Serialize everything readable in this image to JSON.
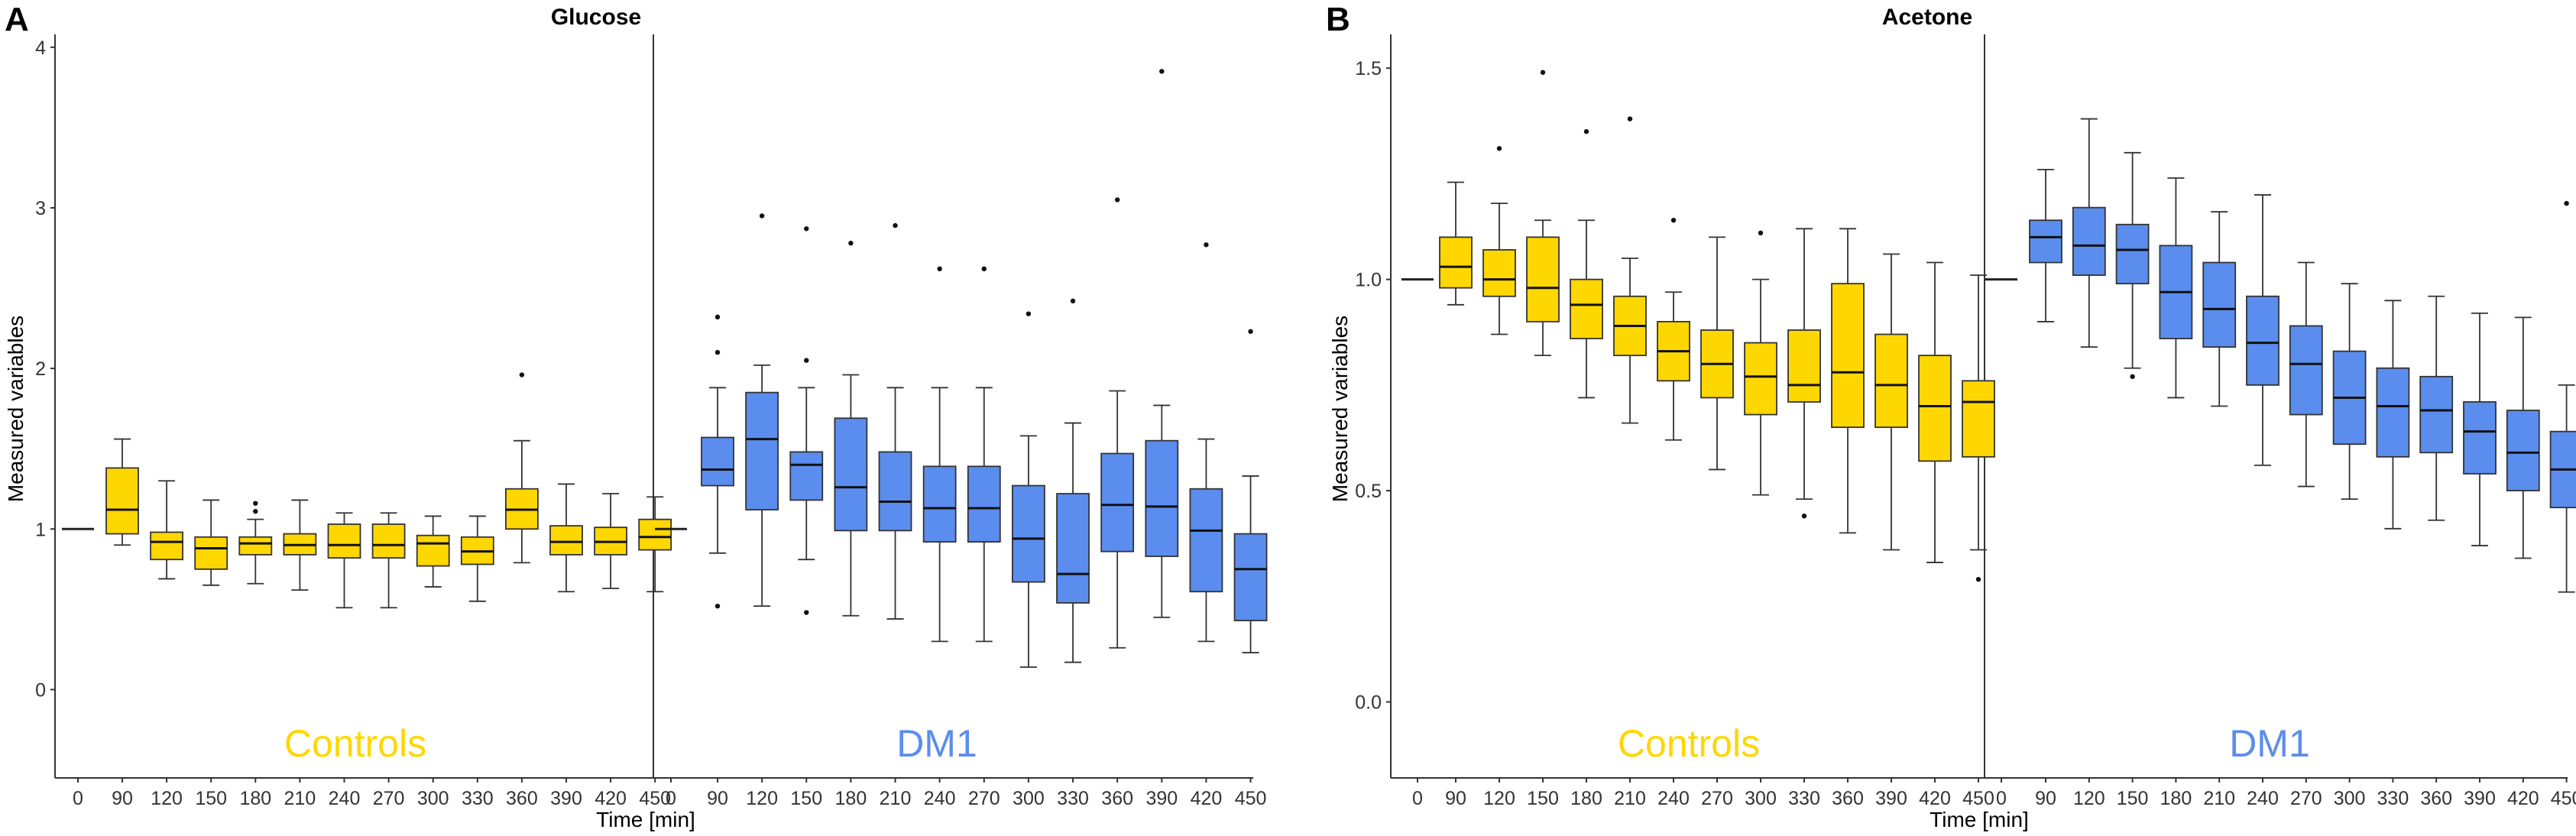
{
  "colors": {
    "controls": "#FFD700",
    "dm1": "#5B8DEE",
    "box_stroke": "#333333"
  },
  "chart_data": [
    {
      "type": "boxplot",
      "panel_letter": "A",
      "title": "Glucose",
      "xlabel": "Time [min]",
      "ylabel": "Measured variables",
      "ylim": [
        -0.55,
        4.08
      ],
      "yticks": [
        {
          "v": 0,
          "label": "0"
        },
        {
          "v": 1,
          "label": "1"
        },
        {
          "v": 2,
          "label": "2"
        },
        {
          "v": 3,
          "label": "3"
        },
        {
          "v": 4,
          "label": "4"
        }
      ],
      "categories": [
        "0",
        "90",
        "120",
        "150",
        "180",
        "210",
        "240",
        "270",
        "300",
        "330",
        "360",
        "390",
        "420",
        "450"
      ],
      "groups": [
        {
          "name": "Controls",
          "color": "#FFD700",
          "boxes": [
            {
              "t": "0",
              "min": 1,
              "q1": 1,
              "med": 1,
              "q3": 1,
              "max": 1,
              "out": []
            },
            {
              "t": "90",
              "min": 0.9,
              "q1": 0.97,
              "med": 1.12,
              "q3": 1.38,
              "max": 1.56,
              "out": []
            },
            {
              "t": "120",
              "min": 0.69,
              "q1": 0.81,
              "med": 0.92,
              "q3": 0.98,
              "max": 1.3,
              "out": []
            },
            {
              "t": "150",
              "min": 0.65,
              "q1": 0.75,
              "med": 0.88,
              "q3": 0.95,
              "max": 1.18,
              "out": []
            },
            {
              "t": "180",
              "min": 0.66,
              "q1": 0.84,
              "med": 0.91,
              "q3": 0.95,
              "max": 1.06,
              "out": [
                1.11,
                1.16
              ]
            },
            {
              "t": "210",
              "min": 0.62,
              "q1": 0.84,
              "med": 0.9,
              "q3": 0.97,
              "max": 1.18,
              "out": []
            },
            {
              "t": "240",
              "min": 0.51,
              "q1": 0.82,
              "med": 0.9,
              "q3": 1.03,
              "max": 1.1,
              "out": []
            },
            {
              "t": "270",
              "min": 0.51,
              "q1": 0.82,
              "med": 0.9,
              "q3": 1.03,
              "max": 1.1,
              "out": []
            },
            {
              "t": "300",
              "min": 0.64,
              "q1": 0.77,
              "med": 0.91,
              "q3": 0.96,
              "max": 1.08,
              "out": []
            },
            {
              "t": "330",
              "min": 0.55,
              "q1": 0.78,
              "med": 0.86,
              "q3": 0.95,
              "max": 1.08,
              "out": []
            },
            {
              "t": "360",
              "min": 0.79,
              "q1": 1.0,
              "med": 1.12,
              "q3": 1.25,
              "max": 1.55,
              "out": [
                1.96
              ]
            },
            {
              "t": "390",
              "min": 0.61,
              "q1": 0.84,
              "med": 0.92,
              "q3": 1.02,
              "max": 1.28,
              "out": []
            },
            {
              "t": "420",
              "min": 0.63,
              "q1": 0.84,
              "med": 0.92,
              "q3": 1.01,
              "max": 1.22,
              "out": []
            },
            {
              "t": "450",
              "min": 0.61,
              "q1": 0.87,
              "med": 0.95,
              "q3": 1.06,
              "max": 1.2,
              "out": []
            }
          ]
        },
        {
          "name": "DM1",
          "color": "#5B8DEE",
          "boxes": [
            {
              "t": "0",
              "min": 1,
              "q1": 1,
              "med": 1,
              "q3": 1,
              "max": 1,
              "out": []
            },
            {
              "t": "90",
              "min": 0.85,
              "q1": 1.27,
              "med": 1.37,
              "q3": 1.57,
              "max": 1.88,
              "out": [
                2.1,
                2.32,
                0.52
              ]
            },
            {
              "t": "120",
              "min": 0.52,
              "q1": 1.12,
              "med": 1.56,
              "q3": 1.85,
              "max": 2.02,
              "out": [
                2.95
              ]
            },
            {
              "t": "150",
              "min": 0.81,
              "q1": 1.18,
              "med": 1.4,
              "q3": 1.48,
              "max": 1.88,
              "out": [
                2.05,
                2.87,
                0.48
              ]
            },
            {
              "t": "180",
              "min": 0.46,
              "q1": 0.99,
              "med": 1.26,
              "q3": 1.69,
              "max": 1.96,
              "out": [
                2.78
              ]
            },
            {
              "t": "210",
              "min": 0.44,
              "q1": 0.99,
              "med": 1.17,
              "q3": 1.48,
              "max": 1.88,
              "out": [
                2.89
              ]
            },
            {
              "t": "240",
              "min": 0.3,
              "q1": 0.92,
              "med": 1.13,
              "q3": 1.39,
              "max": 1.88,
              "out": [
                2.62
              ]
            },
            {
              "t": "270",
              "min": 0.3,
              "q1": 0.92,
              "med": 1.13,
              "q3": 1.39,
              "max": 1.88,
              "out": [
                2.62
              ]
            },
            {
              "t": "300",
              "min": 0.14,
              "q1": 0.67,
              "med": 0.94,
              "q3": 1.27,
              "max": 1.58,
              "out": [
                2.34
              ]
            },
            {
              "t": "330",
              "min": 0.17,
              "q1": 0.54,
              "med": 0.72,
              "q3": 1.22,
              "max": 1.66,
              "out": [
                2.42
              ]
            },
            {
              "t": "360",
              "min": 0.26,
              "q1": 0.86,
              "med": 1.15,
              "q3": 1.47,
              "max": 1.86,
              "out": [
                3.05
              ]
            },
            {
              "t": "390",
              "min": 0.45,
              "q1": 0.83,
              "med": 1.14,
              "q3": 1.55,
              "max": 1.77,
              "out": [
                3.85
              ]
            },
            {
              "t": "420",
              "min": 0.3,
              "q1": 0.61,
              "med": 0.99,
              "q3": 1.25,
              "max": 1.56,
              "out": [
                2.77
              ]
            },
            {
              "t": "450",
              "min": 0.23,
              "q1": 0.43,
              "med": 0.75,
              "q3": 0.97,
              "max": 1.33,
              "out": [
                2.23
              ]
            }
          ]
        }
      ]
    },
    {
      "type": "boxplot",
      "panel_letter": "B",
      "title": "Acetone",
      "xlabel": "Time [min]",
      "ylabel": "Measured variables",
      "ylim": [
        -0.18,
        1.58
      ],
      "yticks": [
        {
          "v": 0,
          "label": "0.0"
        },
        {
          "v": 0.5,
          "label": "0.5"
        },
        {
          "v": 1.0,
          "label": "1.0"
        },
        {
          "v": 1.5,
          "label": "1.5"
        }
      ],
      "categories": [
        "0",
        "90",
        "120",
        "150",
        "180",
        "210",
        "240",
        "270",
        "300",
        "330",
        "360",
        "390",
        "420",
        "450"
      ],
      "groups": [
        {
          "name": "Controls",
          "color": "#FFD700",
          "boxes": [
            {
              "t": "0",
              "min": 1,
              "q1": 1,
              "med": 1,
              "q3": 1,
              "max": 1,
              "out": []
            },
            {
              "t": "90",
              "min": 0.94,
              "q1": 0.98,
              "med": 1.03,
              "q3": 1.1,
              "max": 1.23,
              "out": []
            },
            {
              "t": "120",
              "min": 0.87,
              "q1": 0.96,
              "med": 1.0,
              "q3": 1.07,
              "max": 1.18,
              "out": [
                1.31
              ]
            },
            {
              "t": "150",
              "min": 0.82,
              "q1": 0.9,
              "med": 0.98,
              "q3": 1.1,
              "max": 1.14,
              "out": [
                1.49
              ]
            },
            {
              "t": "180",
              "min": 0.72,
              "q1": 0.86,
              "med": 0.94,
              "q3": 1.0,
              "max": 1.14,
              "out": [
                1.35
              ]
            },
            {
              "t": "210",
              "min": 0.66,
              "q1": 0.82,
              "med": 0.89,
              "q3": 0.96,
              "max": 1.05,
              "out": [
                1.38
              ]
            },
            {
              "t": "240",
              "min": 0.62,
              "q1": 0.76,
              "med": 0.83,
              "q3": 0.9,
              "max": 0.97,
              "out": [
                1.14
              ]
            },
            {
              "t": "270",
              "min": 0.55,
              "q1": 0.72,
              "med": 0.8,
              "q3": 0.88,
              "max": 1.1,
              "out": []
            },
            {
              "t": "300",
              "min": 0.49,
              "q1": 0.68,
              "med": 0.77,
              "q3": 0.85,
              "max": 1.0,
              "out": [
                1.11
              ]
            },
            {
              "t": "330",
              "min": 0.48,
              "q1": 0.71,
              "med": 0.75,
              "q3": 0.88,
              "max": 1.12,
              "out": [
                0.44
              ]
            },
            {
              "t": "360",
              "min": 0.4,
              "q1": 0.65,
              "med": 0.78,
              "q3": 0.99,
              "max": 1.12,
              "out": []
            },
            {
              "t": "390",
              "min": 0.36,
              "q1": 0.65,
              "med": 0.75,
              "q3": 0.87,
              "max": 1.06,
              "out": []
            },
            {
              "t": "420",
              "min": 0.33,
              "q1": 0.57,
              "med": 0.7,
              "q3": 0.82,
              "max": 1.04,
              "out": []
            },
            {
              "t": "450",
              "min": 0.36,
              "q1": 0.58,
              "med": 0.71,
              "q3": 0.76,
              "max": 1.01,
              "out": [
                0.29
              ]
            }
          ]
        },
        {
          "name": "DM1",
          "color": "#5B8DEE",
          "boxes": [
            {
              "t": "0",
              "min": 1,
              "q1": 1,
              "med": 1,
              "q3": 1,
              "max": 1,
              "out": []
            },
            {
              "t": "90",
              "min": 0.9,
              "q1": 1.04,
              "med": 1.1,
              "q3": 1.14,
              "max": 1.26,
              "out": []
            },
            {
              "t": "120",
              "min": 0.84,
              "q1": 1.01,
              "med": 1.08,
              "q3": 1.17,
              "max": 1.38,
              "out": []
            },
            {
              "t": "150",
              "min": 0.79,
              "q1": 0.99,
              "med": 1.07,
              "q3": 1.13,
              "max": 1.3,
              "out": [
                0.77
              ]
            },
            {
              "t": "180",
              "min": 0.72,
              "q1": 0.86,
              "med": 0.97,
              "q3": 1.08,
              "max": 1.24,
              "out": []
            },
            {
              "t": "210",
              "min": 0.7,
              "q1": 0.84,
              "med": 0.93,
              "q3": 1.04,
              "max": 1.16,
              "out": []
            },
            {
              "t": "240",
              "min": 0.56,
              "q1": 0.75,
              "med": 0.85,
              "q3": 0.96,
              "max": 1.2,
              "out": []
            },
            {
              "t": "270",
              "min": 0.51,
              "q1": 0.68,
              "med": 0.8,
              "q3": 0.89,
              "max": 1.04,
              "out": []
            },
            {
              "t": "300",
              "min": 0.48,
              "q1": 0.61,
              "med": 0.72,
              "q3": 0.83,
              "max": 0.99,
              "out": []
            },
            {
              "t": "330",
              "min": 0.41,
              "q1": 0.58,
              "med": 0.7,
              "q3": 0.79,
              "max": 0.95,
              "out": []
            },
            {
              "t": "360",
              "min": 0.43,
              "q1": 0.59,
              "med": 0.69,
              "q3": 0.77,
              "max": 0.96,
              "out": []
            },
            {
              "t": "390",
              "min": 0.37,
              "q1": 0.54,
              "med": 0.64,
              "q3": 0.71,
              "max": 0.92,
              "out": []
            },
            {
              "t": "420",
              "min": 0.34,
              "q1": 0.5,
              "med": 0.59,
              "q3": 0.69,
              "max": 0.91,
              "out": []
            },
            {
              "t": "450",
              "min": 0.26,
              "q1": 0.46,
              "med": 0.55,
              "q3": 0.64,
              "max": 0.75,
              "out": [
                1.18
              ]
            }
          ]
        }
      ]
    }
  ]
}
